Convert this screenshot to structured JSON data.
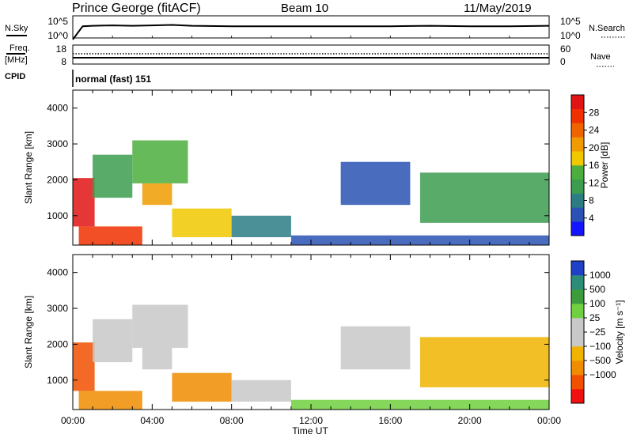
{
  "header": {
    "station": "Prince George (fitACF)",
    "beam": "Beam 10",
    "date": "11/May/2019"
  },
  "left_labels": {
    "nsky": "N.Sky",
    "freq_line1": "Freq.",
    "freq_line2": "[MHz]",
    "cpid": "CPID"
  },
  "right_labels": {
    "nsearch": "N.Search",
    "nave": "Nave"
  },
  "cpid_text": "normal (fast) 151",
  "axis": {
    "slant_label": "Slant Range [km]",
    "time_label": "Time UT",
    "power_label": "Power [dB]",
    "velocity_label": "Velocity [m s⁻¹]"
  },
  "colors": {
    "velocity_scale": [
      "#f01010",
      "#f05000",
      "#f08c00",
      "#f0b400",
      "#c8c8c8",
      "#c8c8c8",
      "#70d040",
      "#3c9c3c",
      "#2c8c78",
      "#2040c8"
    ],
    "power_scale": [
      "#1414ff",
      "#2a52b4",
      "#2c7c84",
      "#3c9c50",
      "#4cae3c",
      "#f0c800",
      "#f09c00",
      "#f06400",
      "#f03000",
      "#e01414"
    ]
  },
  "chart_data": [
    {
      "type": "line",
      "name": "noise-panel",
      "y_ticks_left": [
        "10^5",
        "10^0"
      ],
      "y_ticks_right": [
        "10^5",
        "10^0"
      ],
      "series": [
        {
          "name": "N.Sky",
          "x_hours": [
            0.0,
            0.5,
            1.0,
            2.0,
            3.0,
            4.0,
            5.0,
            6.0,
            8.0,
            10.0,
            12.0,
            14.0,
            16.0,
            18.0,
            20.0,
            22.0,
            24.0
          ],
          "log_values": [
            0.0,
            3.0,
            3.1,
            3.2,
            3.1,
            3.2,
            3.3,
            3.1,
            3.0,
            3.0,
            3.0,
            3.0,
            3.0,
            3.1,
            3.0,
            3.0,
            3.1
          ]
        }
      ]
    },
    {
      "type": "line",
      "name": "freq-panel",
      "y_ticks_left": [
        "18",
        "8"
      ],
      "y_ticks_right": [
        "60",
        "0"
      ],
      "series": [
        {
          "name": "Freq.",
          "x_hours": [
            0,
            24
          ],
          "values": [
            10.5,
            10.5
          ]
        },
        {
          "name": "Nave",
          "x_hours": [
            0,
            24
          ],
          "values": [
            28,
            28
          ]
        }
      ]
    },
    {
      "type": "heatmap",
      "name": "power",
      "xlabel": "",
      "ylabel": "Slant Range [km]",
      "ylim": [
        180,
        4500
      ],
      "y_ticks": [
        1000,
        2000,
        3000,
        4000
      ],
      "colorbar_label": "Power [dB]",
      "colorbar_ticks": [
        4,
        8,
        12,
        16,
        20,
        24,
        28
      ],
      "colorbar_range": [
        0,
        32
      ],
      "regions": [
        {
          "t0": 0.0,
          "t1": 1.1,
          "r0": 700,
          "r1": 2050,
          "v": 30
        },
        {
          "t0": 0.3,
          "t1": 3.5,
          "r0": 180,
          "r1": 700,
          "v": 26
        },
        {
          "t0": 1.0,
          "t1": 3.0,
          "r0": 1500,
          "r1": 2700,
          "v": 10
        },
        {
          "t0": 3.0,
          "t1": 5.8,
          "r0": 1900,
          "r1": 3100,
          "v": 14
        },
        {
          "t0": 3.5,
          "t1": 5.0,
          "r0": 1300,
          "r1": 1900,
          "v": 20
        },
        {
          "t0": 5.0,
          "t1": 8.0,
          "r0": 400,
          "r1": 1200,
          "v": 18
        },
        {
          "t0": 8.0,
          "t1": 11.0,
          "r0": 400,
          "r1": 1000,
          "v": 8
        },
        {
          "t0": 11.0,
          "t1": 24.0,
          "r0": 180,
          "r1": 450,
          "v": 6
        },
        {
          "t0": 13.5,
          "t1": 17.0,
          "r0": 1300,
          "r1": 2500,
          "v": 6
        },
        {
          "t0": 17.5,
          "t1": 24.0,
          "r0": 800,
          "r1": 2200,
          "v": 10
        }
      ]
    },
    {
      "type": "heatmap",
      "name": "velocity",
      "xlabel": "Time UT",
      "ylabel": "Slant Range [km]",
      "ylim": [
        180,
        4500
      ],
      "y_ticks": [
        1000,
        2000,
        3000,
        4000
      ],
      "x_ticks": [
        "00:00",
        "04:00",
        "08:00",
        "12:00",
        "16:00",
        "20:00",
        "00:00"
      ],
      "colorbar_label": "Velocity [m s⁻¹]",
      "colorbar_ticks": [
        "1000",
        "500",
        "100",
        "25",
        "−25",
        "−100",
        "−500",
        "−1000"
      ],
      "regions": [
        {
          "t0": 0.0,
          "t1": 1.1,
          "r0": 700,
          "r1": 2050,
          "v": -700
        },
        {
          "t0": 0.3,
          "t1": 3.5,
          "r0": 180,
          "r1": 700,
          "v": -250
        },
        {
          "t0": 1.0,
          "t1": 3.0,
          "r0": 1500,
          "r1": 2700,
          "v": 0
        },
        {
          "t0": 3.0,
          "t1": 5.8,
          "r0": 1900,
          "r1": 3100,
          "v": 0
        },
        {
          "t0": 3.5,
          "t1": 5.0,
          "r0": 1300,
          "r1": 1900,
          "v": 0
        },
        {
          "t0": 5.0,
          "t1": 8.0,
          "r0": 400,
          "r1": 1200,
          "v": -120
        },
        {
          "t0": 8.0,
          "t1": 11.0,
          "r0": 400,
          "r1": 1000,
          "v": 0
        },
        {
          "t0": 11.0,
          "t1": 24.0,
          "r0": 180,
          "r1": 450,
          "v": 60
        },
        {
          "t0": 13.5,
          "t1": 17.0,
          "r0": 1300,
          "r1": 2500,
          "v": 0
        },
        {
          "t0": 17.5,
          "t1": 24.0,
          "r0": 800,
          "r1": 2200,
          "v": -80
        }
      ]
    }
  ]
}
